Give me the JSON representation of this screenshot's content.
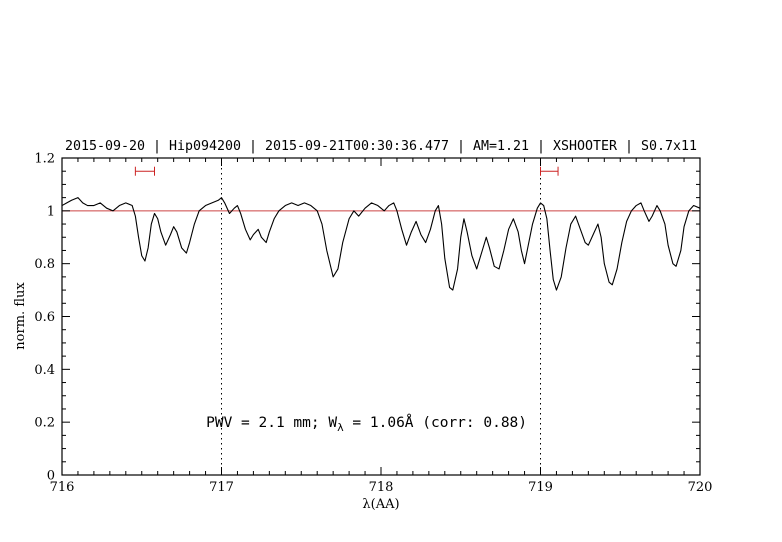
{
  "annotation": {
    "part1": "PWV = 2.1 mm; W",
    "sub": "λ",
    "part2": " = 1.06Å (corr: 0.88)"
  },
  "colors": {
    "title": "#0000cc",
    "annotation": "#0000cc",
    "reference_line": "#cc4444",
    "interval_marker": "#cc2222",
    "spectrum": "#000000",
    "guide_line": "#000000"
  },
  "chart_data": {
    "type": "line",
    "title": "2015-09-20 | Hip094200 | 2015-09-21T00:30:36.477 | AM=1.21 | XSHOOTER | S0.7x11",
    "xlabel": "λ(AA)",
    "ylabel": "norm. flux",
    "xlim": [
      716,
      720
    ],
    "ylim": [
      0,
      1.2
    ],
    "xticks": [
      716,
      717,
      718,
      719,
      720
    ],
    "xtick_labels": [
      "716",
      "717",
      "718",
      "719",
      "720"
    ],
    "yticks": [
      0,
      0.2,
      0.4,
      0.6,
      0.8,
      1,
      1.2
    ],
    "ytick_labels": [
      "0",
      "0.2",
      "0.4",
      "0.6",
      "0.8",
      "1",
      "1.2"
    ],
    "minor_x_step": 0.1,
    "minor_y_step": 0.05,
    "grid": false,
    "legend": "none",
    "reference_line_y": 1.0,
    "dotted_vlines": [
      717,
      719
    ],
    "interval_markers": [
      {
        "x1": 716.46,
        "x2": 716.58,
        "y": 1.15
      },
      {
        "x1": 719.0,
        "x2": 719.11,
        "y": 1.15
      }
    ],
    "annotation_text": "PWV = 2.1 mm; W_λ = 1.06Å (corr: 0.88)",
    "series": [
      {
        "name": "normalized telluric spectrum",
        "color": "#000000",
        "x": [
          716.0,
          716.03,
          716.06,
          716.1,
          716.13,
          716.16,
          716.2,
          716.24,
          716.28,
          716.32,
          716.36,
          716.4,
          716.44,
          716.46,
          716.48,
          716.5,
          716.52,
          716.54,
          716.56,
          716.58,
          716.6,
          716.62,
          716.65,
          716.68,
          716.7,
          716.72,
          716.75,
          716.78,
          716.8,
          716.83,
          716.86,
          716.9,
          716.94,
          716.98,
          717.0,
          717.02,
          717.05,
          717.08,
          717.1,
          717.12,
          717.15,
          717.18,
          717.2,
          717.23,
          717.25,
          717.28,
          717.3,
          717.33,
          717.36,
          717.4,
          717.44,
          717.48,
          717.52,
          717.56,
          717.6,
          717.63,
          717.66,
          717.7,
          717.73,
          717.76,
          717.8,
          717.83,
          717.86,
          717.9,
          717.94,
          717.98,
          718.02,
          718.05,
          718.08,
          718.1,
          718.13,
          718.16,
          718.19,
          718.22,
          718.25,
          718.28,
          718.31,
          718.34,
          718.36,
          718.38,
          718.4,
          718.43,
          718.45,
          718.48,
          718.5,
          718.52,
          718.54,
          718.57,
          718.6,
          718.63,
          718.66,
          718.68,
          718.71,
          718.74,
          718.77,
          718.8,
          718.83,
          718.86,
          718.88,
          718.9,
          718.92,
          718.95,
          718.98,
          719.0,
          719.02,
          719.04,
          719.06,
          719.08,
          719.1,
          719.13,
          719.16,
          719.19,
          719.22,
          719.25,
          719.28,
          719.3,
          719.33,
          719.36,
          719.38,
          719.4,
          719.43,
          719.45,
          719.48,
          719.51,
          719.54,
          719.57,
          719.6,
          719.63,
          719.65,
          719.68,
          719.7,
          719.73,
          719.75,
          719.78,
          719.8,
          719.83,
          719.85,
          719.88,
          719.9,
          719.93,
          719.96,
          720.0
        ],
        "y": [
          1.02,
          1.03,
          1.04,
          1.05,
          1.03,
          1.02,
          1.02,
          1.03,
          1.01,
          1.0,
          1.02,
          1.03,
          1.02,
          0.98,
          0.9,
          0.83,
          0.81,
          0.86,
          0.95,
          0.99,
          0.97,
          0.92,
          0.87,
          0.91,
          0.94,
          0.92,
          0.86,
          0.84,
          0.88,
          0.95,
          1.0,
          1.02,
          1.03,
          1.04,
          1.05,
          1.03,
          0.99,
          1.01,
          1.02,
          0.99,
          0.93,
          0.89,
          0.91,
          0.93,
          0.9,
          0.88,
          0.92,
          0.97,
          1.0,
          1.02,
          1.03,
          1.02,
          1.03,
          1.02,
          1.0,
          0.95,
          0.85,
          0.75,
          0.78,
          0.88,
          0.97,
          1.0,
          0.98,
          1.01,
          1.03,
          1.02,
          1.0,
          1.02,
          1.03,
          1.0,
          0.93,
          0.87,
          0.92,
          0.96,
          0.91,
          0.88,
          0.93,
          1.0,
          1.02,
          0.95,
          0.82,
          0.71,
          0.7,
          0.78,
          0.9,
          0.97,
          0.92,
          0.83,
          0.78,
          0.84,
          0.9,
          0.86,
          0.79,
          0.78,
          0.85,
          0.93,
          0.97,
          0.92,
          0.85,
          0.8,
          0.86,
          0.95,
          1.01,
          1.03,
          1.02,
          0.97,
          0.85,
          0.74,
          0.7,
          0.75,
          0.86,
          0.95,
          0.98,
          0.93,
          0.88,
          0.87,
          0.91,
          0.95,
          0.9,
          0.8,
          0.73,
          0.72,
          0.78,
          0.88,
          0.96,
          1.0,
          1.02,
          1.03,
          1.0,
          0.96,
          0.98,
          1.02,
          1.0,
          0.95,
          0.87,
          0.8,
          0.79,
          0.85,
          0.94,
          1.0,
          1.02,
          1.01
        ]
      }
    ]
  }
}
